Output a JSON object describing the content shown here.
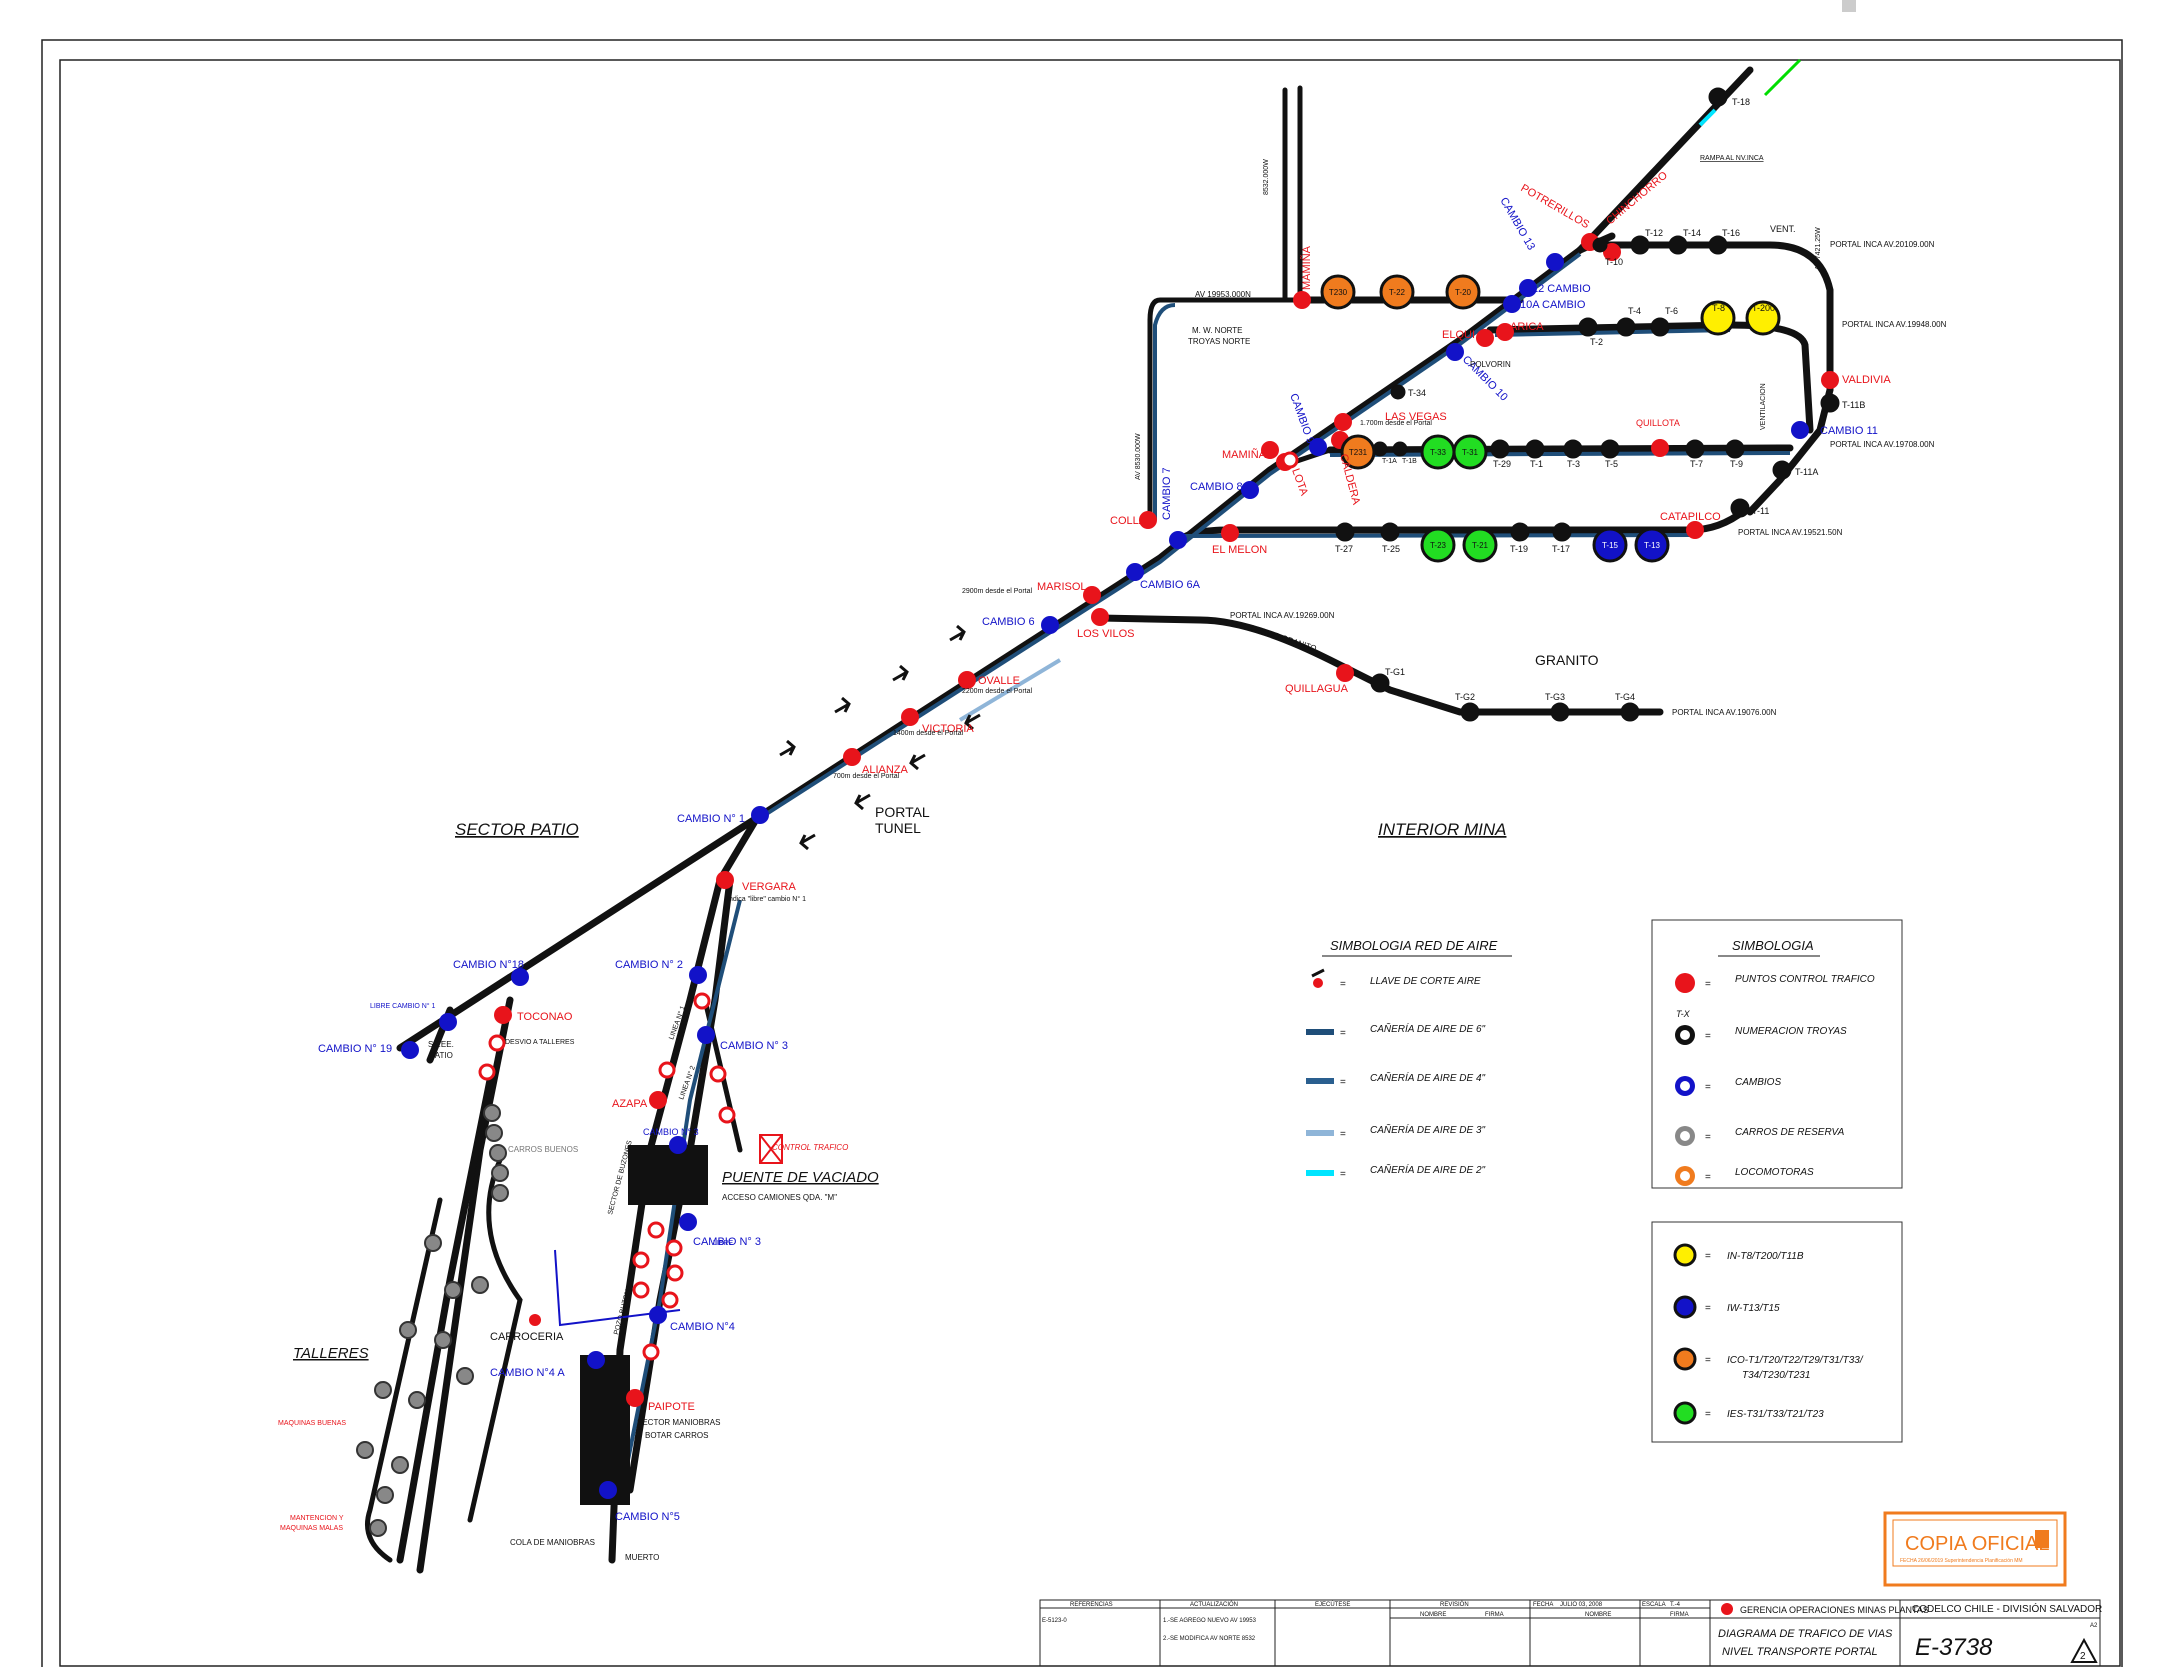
{
  "sectors": {
    "patio": "SECTOR PATIO",
    "interior": "INTERIOR MINA",
    "portal_tunel_1": "PORTAL",
    "portal_tunel_2": "TUNEL",
    "puente": "PUENTE DE VACIADO",
    "talleres": "TALLERES",
    "granito": "GRANITO"
  },
  "control_points": [
    "POTRERILLOS",
    "CHINCHORRO",
    "MAMIÑA",
    "ELQUI",
    "ARICA",
    "LAS VEGAS",
    "MAMIÑA",
    "LOTA",
    "CALDERA",
    "QUILLOTA",
    "VALDIVIA",
    "COLLA",
    "EL MELON",
    "CATAPILCO",
    "MARISOL",
    "LOS VILOS",
    "OVALLE",
    "VICTORIA",
    "ALIANZA",
    "QUILLAGUA",
    "VERGARA",
    "TOCONAO",
    "AZAPA",
    "PAIPOTE",
    "CARROCERIA"
  ],
  "cambios": [
    "CAMBIO 13",
    "12 CAMBIO",
    "10A CAMBIO",
    "CAMBIO 10",
    "CAMBIO 9",
    "CAMBIO 8",
    "CAMBIO 7",
    "CAMBIO 6A",
    "CAMBIO 6",
    "CAMBIO 11",
    "CAMBIO N° 1",
    "CAMBIO N°18",
    "CAMBIO N° 19",
    "CAMBIO N° 2",
    "CAMBIO N° 3",
    "CAMBIO N° 3",
    "CAMBIO N°4",
    "CAMBIO N°4 A",
    "CAMBIO N°5",
    "CAMBIO N° 3"
  ],
  "troyas": {
    "top": [
      "T-18",
      "T-10",
      "T-12",
      "T-14",
      "T-16",
      "VENT."
    ],
    "row2": [
      "T-2",
      "T-4",
      "T-6",
      "T-8",
      "T-200"
    ],
    "row3": [
      "T-1A",
      "T-1B",
      "T-29",
      "T-1",
      "T-3",
      "T-5",
      "T-7",
      "T-9"
    ],
    "row4": [
      "T-27",
      "T-25",
      "T-19",
      "T-17",
      "T-11",
      "T-11A",
      "T-11B",
      "T-34"
    ],
    "granito": [
      "T-G1",
      "T-G2",
      "T-G3",
      "T-G4"
    ],
    "locos": [
      "T230",
      "T-22",
      "T-20",
      "T231",
      "T-33",
      "T-31",
      "T-23",
      "T-21",
      "T-15",
      "T-13"
    ]
  },
  "portales": [
    "PORTAL INCA AV.20109.00N",
    "PORTAL INCA AV.19948.00N",
    "PORTAL INCA AV.19708.00N",
    "PORTAL INCA AV.19521.50N",
    "PORTAL INCA AV.19269.00N",
    "PORTAL INCA AV.19076.00N"
  ],
  "misc_labels": {
    "av_19953": "AV 19953.000N",
    "mw_norte_1": "M. W. NORTE",
    "mw_norte_2": "TROYAS NORTE",
    "polvorin": "POLVORIN",
    "rampa_inca": "RAMPA AL NV.INCA",
    "d_1700": "1.700m desde el Portal",
    "d_2900": "2900m desde el Portal",
    "d_2200": "2200m desde el Portal",
    "d_1400": "1400m desde el Portal",
    "d_700": "700m desde el Portal",
    "desvio_granito": "DESVIO GRANITO",
    "vergara_note": "Indica \"libre\" cambio N° 1",
    "desvio_talleres": "DESVIO A TALLERES",
    "ssee_1": "SS.EE.",
    "ssee_2": "PATIO",
    "libre_cambio1": "LIBRE CAMBIO N° 1",
    "carros_buenos": "CARROS BUENOS",
    "control_trafico": "CONTROL TRAFICO",
    "acceso": "ACCESO CAMIONES QDA. \"M\"",
    "libre": "LIBRE",
    "sector_maniobras_1": "SECTOR MANIOBRAS",
    "sector_maniobras_2": "BOTAR CARROS",
    "cola_maniobras": "COLA DE MANIOBRAS",
    "muerto": "MUERTO",
    "maquinas_buenas": "MAQUINAS BUENAS",
    "mantencion_1": "MANTENCION Y",
    "mantencion_2": "MAQUINAS MALAS",
    "av_8530": "AV 8530.000W",
    "av_8532": "8532.000W",
    "av_7421": "AV 7421.25W",
    "ventilacion": "VENTILACION",
    "linea1": "LINEA N° 1",
    "linea2": "LINEA N° 2",
    "sector_buzones": "SECTOR DE BUZONES",
    "pozo": "POZO BUZON"
  },
  "legend_aire": {
    "title": "SIMBOLOGIA RED DE AIRE",
    "items": [
      "LLAVE DE CORTE AIRE",
      "CAÑERÍA DE AIRE DE 6\"",
      "CAÑERÍA DE AIRE DE 4\"",
      "CAÑERÍA DE AIRE DE 3\"",
      "CAÑERÍA DE AIRE DE 2\""
    ],
    "colors": [
      "#111111",
      "#1f4e79",
      "#2a5f8f",
      "#8fb5d8",
      "#00e5ff"
    ]
  },
  "legend_simbologia": {
    "title": "SIMBOLOGIA",
    "items": [
      "PUNTOS CONTROL TRAFICO",
      "NUMERACION TROYAS",
      "CAMBIOS",
      "CARROS DE RESERVA",
      "LOCOMOTORAS"
    ],
    "tx": "T-X",
    "colors": [
      "#e8141b",
      "#111111",
      "#1212c8",
      "#888888",
      "#f07b1e"
    ]
  },
  "legend_locos": {
    "items": [
      "IN-T8/T200/T11B",
      "IW-T13/T15",
      "ICO-T1/T20/T22/T29/T31/T33/",
      "IES-T31/T33/T21/T23"
    ],
    "item3b": "T34/T230/T231",
    "colors": [
      "#ffef00",
      "#1212c8",
      "#f07b1e",
      "#22dd22"
    ]
  },
  "stamp": {
    "title": "COPIA OFICIAL",
    "sub": "FECHA 26/06/2019   Superintendencia Planificación MM"
  },
  "titleblock": {
    "company": "CODELCO CHILE - DIVISIÓN SALVADOR",
    "gerencia": "GERENCIA OPERACIONES MINAS PLANTAS",
    "title1": "DIAGRAMA DE TRAFICO DE VIAS",
    "title2": "NIVEL TRANSPORTE PORTAL",
    "number": "E-3738",
    "referencias": "REFERENCIAS",
    "actualizacion": "ACTUALIZACIÓN",
    "ejecutese": "EJECÚTESE",
    "revision": "REVISIÓN",
    "fecha": "FECHA",
    "fecha_val": "JULIO 03, 2008",
    "escala": "ESCALA",
    "escala_val": "T.-4",
    "nombre": "NOMBRE",
    "firma": "FIRMA",
    "ref_val": "E-5123-0",
    "upd1": "1.-SE AGREGO NUEVO AV 19953",
    "upd2": "2.-SE MODIFICA AV NORTE 8532",
    "rev": "2",
    "formato": "A2"
  }
}
